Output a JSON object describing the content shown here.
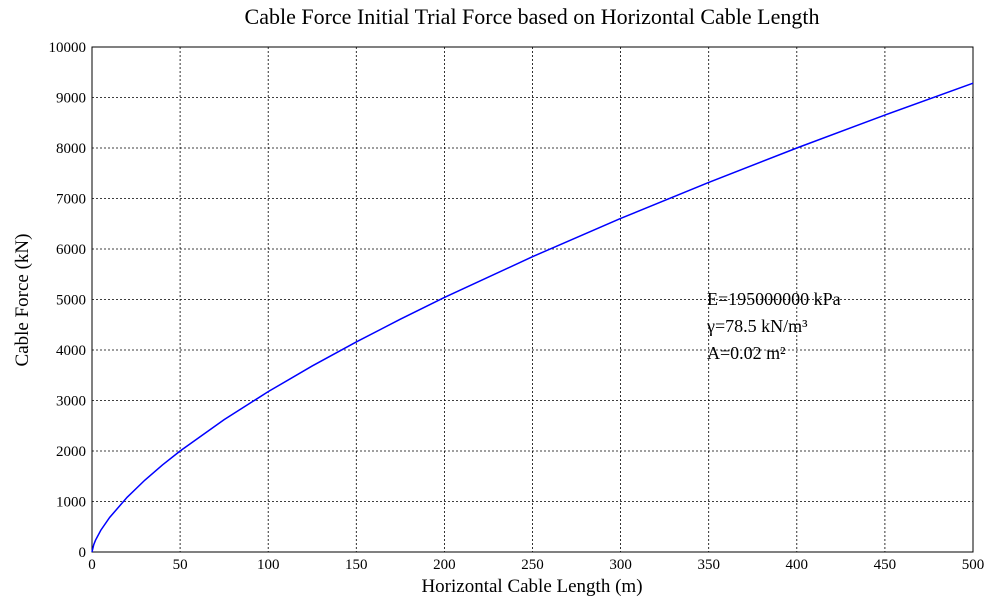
{
  "chart_data": {
    "type": "line",
    "title": "Cable Force Initial Trial Force based on Horizontal Cable Length",
    "xlabel": "Horizontal Cable Length (m)",
    "ylabel": "Cable Force (kN)",
    "annotations": [
      "E=195000000 kPa",
      "γ=78.5 kN/m³",
      "A=0.02 m²"
    ],
    "x": [
      0,
      1,
      2,
      5,
      10,
      20,
      30,
      40,
      50,
      75,
      100,
      125,
      150,
      175,
      200,
      250,
      300,
      350,
      400,
      450,
      500
    ],
    "series": [
      {
        "name": "Cable Force",
        "color": "#0000ff",
        "values": [
          0,
          147,
          234,
          431,
          684,
          1086,
          1423,
          1724,
          2000,
          2621,
          3175,
          3684,
          4160,
          4610,
          5040,
          5848,
          6604,
          7319,
          8000,
          8653,
          9283
        ]
      }
    ],
    "xlim": [
      0,
      500
    ],
    "xticks": [
      0,
      50,
      100,
      150,
      200,
      250,
      300,
      350,
      400,
      450,
      500
    ],
    "ylim": [
      0,
      10000
    ],
    "yticks": [
      0,
      1000,
      2000,
      3000,
      4000,
      5000,
      6000,
      7000,
      8000,
      9000,
      10000
    ],
    "grid": true
  }
}
